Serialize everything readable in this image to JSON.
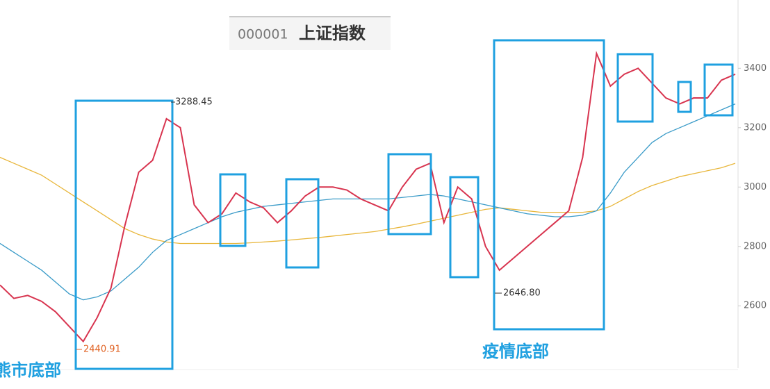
{
  "chart_data": {
    "type": "line",
    "code": "000001",
    "title": "上证指数",
    "ylim": [
      2390,
      3630
    ],
    "yticks": [
      2600,
      2800,
      3000,
      3200,
      3400
    ],
    "series": [
      {
        "color": "#d8344f",
        "values": [
          2670,
          2625,
          2635,
          2615,
          2580,
          2530,
          2480,
          2560,
          2660,
          2870,
          3050,
          3090,
          3230,
          3200,
          2940,
          2880,
          2910,
          2980,
          2950,
          2930,
          2880,
          2920,
          2970,
          3000,
          3000,
          2990,
          2960,
          2940,
          2920,
          3000,
          3060,
          3080,
          2880,
          3000,
          2960,
          2800,
          2720,
          2760,
          2800,
          2840,
          2880,
          2920,
          3100,
          3450,
          3340,
          3380,
          3400,
          3350,
          3300,
          3280,
          3300,
          3300,
          3360,
          3380
        ]
      },
      {
        "color": "#3a9bc8",
        "values": [
          2810,
          2780,
          2750,
          2720,
          2680,
          2640,
          2620,
          2630,
          2650,
          2690,
          2730,
          2780,
          2820,
          2840,
          2860,
          2880,
          2900,
          2915,
          2925,
          2935,
          2940,
          2945,
          2950,
          2955,
          2960,
          2960,
          2960,
          2960,
          2960,
          2965,
          2970,
          2975,
          2970,
          2960,
          2950,
          2940,
          2930,
          2920,
          2910,
          2905,
          2900,
          2900,
          2905,
          2920,
          2980,
          3050,
          3100,
          3150,
          3180,
          3200,
          3220,
          3240,
          3260,
          3280
        ]
      },
      {
        "color": "#e8b63a",
        "values": [
          3100,
          3080,
          3060,
          3040,
          3010,
          2980,
          2950,
          2920,
          2890,
          2860,
          2840,
          2825,
          2815,
          2810,
          2810,
          2810,
          2810,
          2810,
          2812,
          2815,
          2818,
          2822,
          2826,
          2830,
          2835,
          2840,
          2845,
          2850,
          2858,
          2866,
          2875,
          2885,
          2895,
          2905,
          2915,
          2925,
          2930,
          2925,
          2920,
          2915,
          2915,
          2915,
          2915,
          2920,
          2935,
          2960,
          2985,
          3005,
          3020,
          3035,
          3045,
          3055,
          3065,
          3080
        ]
      }
    ],
    "annotations": [
      "3288.45",
      "2440.91",
      "2646.80",
      "熊市底部",
      "疫情底部"
    ]
  }
}
